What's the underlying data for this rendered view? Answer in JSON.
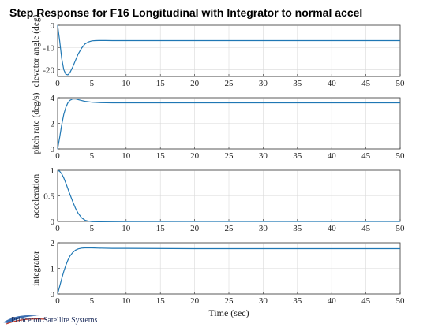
{
  "title": "Step Response for F16 Longitudinal with Integrator to normal accel",
  "logo_text": "Princeton Satellite Systems",
  "colors": {
    "line": "#1f77b4",
    "axes": "#262626",
    "grid": "#d9d9d9"
  },
  "chart_data": [
    {
      "type": "line",
      "ylabel": "elevator angle (deg)",
      "xlabel": "",
      "xlim": [
        0,
        50
      ],
      "ylim": [
        -23,
        0
      ],
      "xticks": [
        0,
        5,
        10,
        15,
        20,
        25,
        30,
        35,
        40,
        45,
        50
      ],
      "yticks": [
        -20,
        -10,
        0
      ],
      "grid": true,
      "x": [
        0,
        0.3,
        0.6,
        0.9,
        1.2,
        1.5,
        1.8,
        2.2,
        2.6,
        3.0,
        3.5,
        4.0,
        4.5,
        5.0,
        5.5,
        6.0,
        7.0,
        8.0,
        10.0,
        15.0,
        20.0,
        30.0,
        40.0,
        50.0
      ],
      "series": [
        {
          "values": [
            0,
            -7,
            -15,
            -20,
            -22,
            -22.3,
            -21.3,
            -18.8,
            -15.8,
            -13,
            -10.3,
            -8.4,
            -7.5,
            -7.0,
            -6.9,
            -6.85,
            -6.85,
            -6.9,
            -6.9,
            -6.9,
            -6.9,
            -6.9,
            -6.9,
            -6.9
          ]
        }
      ]
    },
    {
      "type": "line",
      "ylabel": "pitch rate (deg/s)",
      "xlabel": "",
      "xlim": [
        0,
        50
      ],
      "ylim": [
        0,
        4
      ],
      "xticks": [
        0,
        5,
        10,
        15,
        20,
        25,
        30,
        35,
        40,
        45,
        50
      ],
      "yticks": [
        0,
        2,
        4
      ],
      "grid": true,
      "x": [
        0,
        0.3,
        0.6,
        0.9,
        1.2,
        1.5,
        1.8,
        2.2,
        2.6,
        3.0,
        3.5,
        4.0,
        5.0,
        6.0,
        8.0,
        10.0,
        20.0,
        30.0,
        40.0,
        50.0
      ],
      "series": [
        {
          "values": [
            0,
            0.9,
            1.9,
            2.7,
            3.25,
            3.6,
            3.8,
            3.9,
            3.9,
            3.85,
            3.78,
            3.72,
            3.65,
            3.62,
            3.6,
            3.6,
            3.6,
            3.6,
            3.6,
            3.6
          ]
        }
      ]
    },
    {
      "type": "line",
      "ylabel": "acceleration",
      "xlabel": "",
      "xlim": [
        0,
        50
      ],
      "ylim": [
        0,
        1
      ],
      "xticks": [
        0,
        5,
        10,
        15,
        20,
        25,
        30,
        35,
        40,
        45,
        50
      ],
      "yticks": [
        0,
        0.5,
        1
      ],
      "yticklabels": [
        "0",
        "0.5",
        "1"
      ],
      "grid": true,
      "x": [
        0,
        0.3,
        0.6,
        0.9,
        1.2,
        1.5,
        1.8,
        2.2,
        2.6,
        3.0,
        3.5,
        4.0,
        4.5,
        5.0,
        6.0,
        8.0,
        10.0,
        20.0,
        30.0,
        40.0,
        50.0
      ],
      "series": [
        {
          "values": [
            1.0,
            0.98,
            0.93,
            0.85,
            0.75,
            0.64,
            0.53,
            0.39,
            0.26,
            0.16,
            0.07,
            0.025,
            0.005,
            -0.004,
            -0.006,
            -0.004,
            -0.001,
            0,
            0,
            0,
            0
          ]
        }
      ]
    },
    {
      "type": "line",
      "ylabel": "integrator",
      "xlabel": "Time (sec)",
      "xlim": [
        0,
        50
      ],
      "ylim": [
        0,
        2
      ],
      "xticks": [
        0,
        5,
        10,
        15,
        20,
        25,
        30,
        35,
        40,
        45,
        50
      ],
      "yticks": [
        0,
        1,
        2
      ],
      "grid": true,
      "x": [
        0,
        0.3,
        0.6,
        0.9,
        1.2,
        1.5,
        1.8,
        2.2,
        2.6,
        3.0,
        3.5,
        4.0,
        4.5,
        5.0,
        6.0,
        8.0,
        10.0,
        20.0,
        30.0,
        40.0,
        50.0
      ],
      "series": [
        {
          "values": [
            0,
            0.3,
            0.6,
            0.88,
            1.12,
            1.32,
            1.48,
            1.62,
            1.71,
            1.76,
            1.79,
            1.8,
            1.8,
            1.8,
            1.79,
            1.78,
            1.78,
            1.77,
            1.77,
            1.77,
            1.77
          ]
        }
      ]
    }
  ]
}
